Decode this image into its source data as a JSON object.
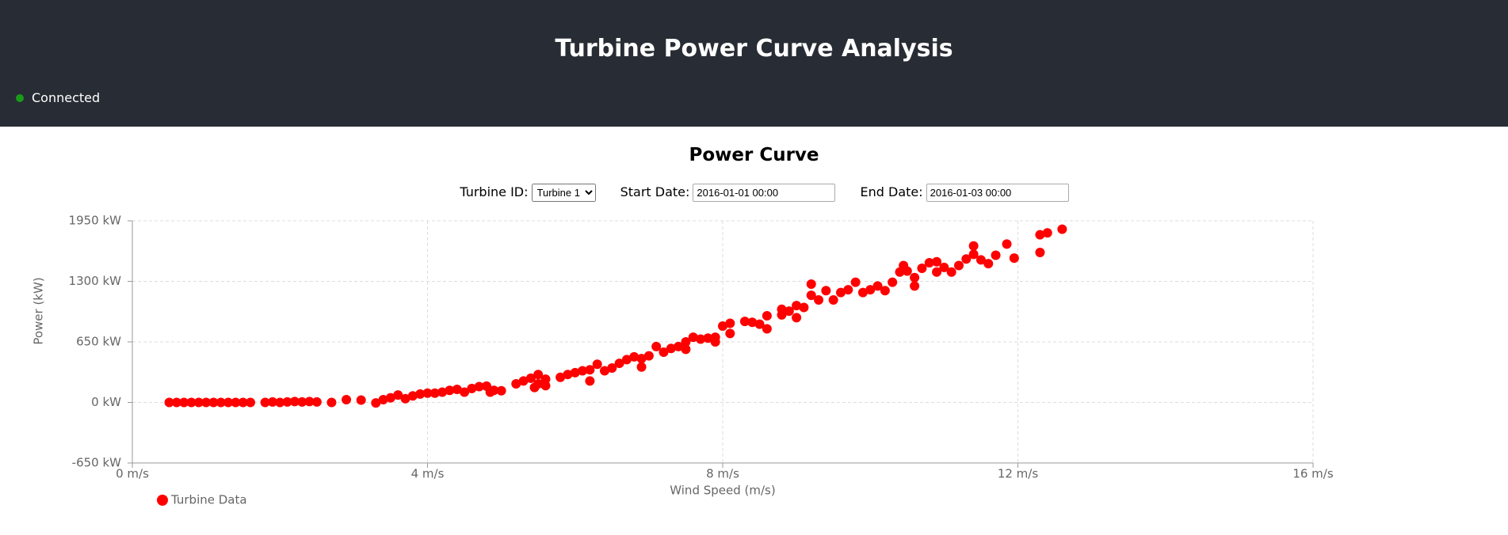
{
  "header": {
    "title": "Turbine Power Curve Analysis",
    "status": "Connected"
  },
  "controls": {
    "turbine_label": "Turbine ID:",
    "turbine_value": "Turbine 1",
    "start_label": "Start Date:",
    "start_value": "2016-01-01 00:00",
    "end_label": "End Date:",
    "end_value": "2016-01-03 00:00"
  },
  "chart_data": {
    "type": "scatter",
    "title": "Power Curve",
    "x_label": "Wind Speed (m/s)",
    "y_label": "Power (kW)",
    "grid": true,
    "legend": "bottom-left",
    "xlim": [
      0,
      16
    ],
    "xticks": [
      {
        "value": 0,
        "label": "0 m/s"
      },
      {
        "value": 4,
        "label": "4 m/s"
      },
      {
        "value": 8,
        "label": "8 m/s"
      },
      {
        "value": 12,
        "label": "12 m/s"
      },
      {
        "value": 16,
        "label": "16 m/s"
      }
    ],
    "ylim": [
      -650,
      1950
    ],
    "yticks": [
      {
        "value": -650,
        "label": "-650 kW"
      },
      {
        "value": 0,
        "label": "0 kW"
      },
      {
        "value": 650,
        "label": "650 kW"
      },
      {
        "value": 1300,
        "label": "1300 kW"
      },
      {
        "value": 1950,
        "label": "1950 kW"
      }
    ],
    "x": [
      0.5,
      0.6,
      0.7,
      0.8,
      0.9,
      1.0,
      1.1,
      1.2,
      1.3,
      1.4,
      1.5,
      1.6,
      1.8,
      1.9,
      2.0,
      2.1,
      2.2,
      2.3,
      2.4,
      2.5,
      2.7,
      2.9,
      3.1,
      3.3,
      3.4,
      3.5,
      3.6,
      3.7,
      3.8,
      3.9,
      4.0,
      4.1,
      4.2,
      4.3,
      4.4,
      4.5,
      4.6,
      4.7,
      4.8,
      4.85,
      4.9,
      5.0,
      5.2,
      5.3,
      5.4,
      5.45,
      5.5,
      5.5,
      5.6,
      5.6,
      5.8,
      5.9,
      6.0,
      6.1,
      6.2,
      6.2,
      6.3,
      6.4,
      6.5,
      6.6,
      6.7,
      6.8,
      6.9,
      6.9,
      7.0,
      7.1,
      7.2,
      7.3,
      7.4,
      7.5,
      7.5,
      7.6,
      7.7,
      7.8,
      7.9,
      7.9,
      8.0,
      8.1,
      8.1,
      8.3,
      8.4,
      8.5,
      8.6,
      8.6,
      8.8,
      8.8,
      8.9,
      9.0,
      9.0,
      9.1,
      9.2,
      9.2,
      9.3,
      9.4,
      9.5,
      9.6,
      9.7,
      9.8,
      9.9,
      10.0,
      10.1,
      10.2,
      10.3,
      10.4,
      10.45,
      10.5,
      10.6,
      10.6,
      10.7,
      10.8,
      10.9,
      10.9,
      11.0,
      11.1,
      11.2,
      11.3,
      11.4,
      11.4,
      11.5,
      11.6,
      11.7,
      11.85,
      11.95,
      12.3,
      12.3,
      12.4,
      12.6
    ],
    "series": [
      {
        "name": "Turbine Data",
        "color": "#ff0000",
        "values": [
          0,
          0,
          0,
          0,
          0,
          0,
          0,
          0,
          0,
          0,
          0,
          0,
          0,
          5,
          0,
          5,
          10,
          5,
          10,
          5,
          0,
          30,
          25,
          -5,
          30,
          50,
          80,
          40,
          70,
          90,
          100,
          100,
          110,
          130,
          140,
          110,
          150,
          170,
          175,
          110,
          130,
          125,
          200,
          230,
          260,
          160,
          300,
          200,
          250,
          180,
          270,
          300,
          320,
          340,
          350,
          230,
          410,
          340,
          370,
          420,
          460,
          490,
          470,
          380,
          500,
          600,
          540,
          580,
          600,
          650,
          570,
          700,
          680,
          690,
          700,
          650,
          820,
          850,
          740,
          870,
          860,
          840,
          790,
          930,
          1000,
          940,
          980,
          910,
          1040,
          1020,
          1270,
          1150,
          1100,
          1200,
          1100,
          1180,
          1210,
          1290,
          1180,
          1210,
          1250,
          1200,
          1290,
          1400,
          1470,
          1410,
          1250,
          1340,
          1440,
          1500,
          1510,
          1400,
          1450,
          1400,
          1470,
          1540,
          1590,
          1680,
          1530,
          1490,
          1580,
          1700,
          1550,
          1610,
          1800,
          1820,
          1860
        ]
      }
    ]
  }
}
